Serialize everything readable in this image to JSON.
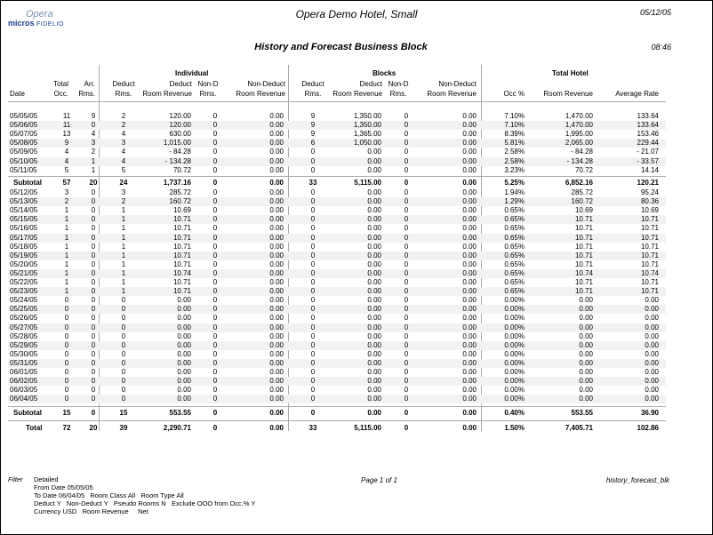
{
  "header": {
    "logo_top": "Opera",
    "logo_brand": "micros",
    "logo_sub": "FIDELIO",
    "hotel": "Opera Demo Hotel, Small",
    "date": "05/12/05",
    "title": "History and Forecast Business Block",
    "time": "08:46"
  },
  "groups": {
    "individual": "Individual",
    "blocks": "Blocks",
    "total_hotel": "Total Hotel"
  },
  "columns": [
    [
      "",
      "",
      "Date"
    ],
    [
      "",
      "Total",
      "Occ."
    ],
    [
      "",
      "Arr.",
      "Rms."
    ],
    [
      "",
      "Deduct",
      "Rms."
    ],
    [
      "",
      "Deduct",
      "Room Revenue"
    ],
    [
      "",
      "Non-D",
      "Rms."
    ],
    [
      "",
      "Non-Deduct",
      "Room Revenue"
    ],
    [
      "",
      "Deduct",
      "Rms."
    ],
    [
      "",
      "Deduct",
      "Room Revenue"
    ],
    [
      "",
      "Non-D",
      "Rms."
    ],
    [
      "",
      "Non-Deduct",
      "Room Revenue"
    ],
    [
      "",
      "",
      "Occ %"
    ],
    [
      "",
      "",
      "Room Revenue"
    ],
    [
      "",
      "",
      "Average Rate"
    ]
  ],
  "rows": [
    [
      "05/05/05",
      "11",
      "9",
      "2",
      "120.00",
      "0",
      "0.00",
      "9",
      "1,350.00",
      "0",
      "0.00",
      "7.10%",
      "1,470.00",
      "133.64"
    ],
    [
      "05/06/05",
      "11",
      "0",
      "2",
      "120.00",
      "0",
      "0.00",
      "9",
      "1,350.00",
      "0",
      "0.00",
      "7.10%",
      "1,470.00",
      "133.64"
    ],
    [
      "05/07/05",
      "13",
      "4",
      "4",
      "630.00",
      "0",
      "0.00",
      "9",
      "1,365.00",
      "0",
      "0.00",
      "8.39%",
      "1,995.00",
      "153.46"
    ],
    [
      "05/08/05",
      "9",
      "3",
      "3",
      "1,015.00",
      "0",
      "0.00",
      "6",
      "1,050.00",
      "0",
      "0.00",
      "5.81%",
      "2,065.00",
      "229.44"
    ],
    [
      "05/09/05",
      "4",
      "2",
      "4",
      "- 84.28",
      "0",
      "0.00",
      "0",
      "0.00",
      "0",
      "0.00",
      "2.58%",
      "- 84.28",
      "- 21.07"
    ],
    [
      "05/10/05",
      "4",
      "1",
      "4",
      "- 134.28",
      "0",
      "0.00",
      "0",
      "0.00",
      "0",
      "0.00",
      "2.58%",
      "- 134.28",
      "- 33.57"
    ],
    [
      "05/11/05",
      "5",
      "1",
      "5",
      "70.72",
      "0",
      "0.00",
      "0",
      "0.00",
      "0",
      "0.00",
      "3.23%",
      "70.72",
      "14.14"
    ],
    [
      "Subtotal",
      "57",
      "20",
      "24",
      "1,737.16",
      "0",
      "0.00",
      "33",
      "5,115.00",
      "0",
      "0.00",
      "5.25%",
      "6,852.16",
      "120.21"
    ],
    [
      "05/12/05",
      "3",
      "0",
      "3",
      "285.72",
      "0",
      "0.00",
      "0",
      "0.00",
      "0",
      "0.00",
      "1.94%",
      "285.72",
      "95.24"
    ],
    [
      "05/13/05",
      "2",
      "0",
      "2",
      "160.72",
      "0",
      "0.00",
      "0",
      "0.00",
      "0",
      "0.00",
      "1.29%",
      "160.72",
      "80.36"
    ],
    [
      "05/14/05",
      "1",
      "0",
      "1",
      "10.69",
      "0",
      "0.00",
      "0",
      "0.00",
      "0",
      "0.00",
      "0.65%",
      "10.69",
      "10.69"
    ],
    [
      "05/15/05",
      "1",
      "0",
      "1",
      "10.71",
      "0",
      "0.00",
      "0",
      "0.00",
      "0",
      "0.00",
      "0.65%",
      "10.71",
      "10.71"
    ],
    [
      "05/16/05",
      "1",
      "0",
      "1",
      "10.71",
      "0",
      "0.00",
      "0",
      "0.00",
      "0",
      "0.00",
      "0.65%",
      "10.71",
      "10.71"
    ],
    [
      "05/17/05",
      "1",
      "0",
      "1",
      "10.71",
      "0",
      "0.00",
      "0",
      "0.00",
      "0",
      "0.00",
      "0.65%",
      "10.71",
      "10.71"
    ],
    [
      "05/18/05",
      "1",
      "0",
      "1",
      "10.71",
      "0",
      "0.00",
      "0",
      "0.00",
      "0",
      "0.00",
      "0.65%",
      "10.71",
      "10.71"
    ],
    [
      "05/19/05",
      "1",
      "0",
      "1",
      "10.71",
      "0",
      "0.00",
      "0",
      "0.00",
      "0",
      "0.00",
      "0.65%",
      "10.71",
      "10.71"
    ],
    [
      "05/20/05",
      "1",
      "0",
      "1",
      "10.71",
      "0",
      "0.00",
      "0",
      "0.00",
      "0",
      "0.00",
      "0.65%",
      "10.71",
      "10.71"
    ],
    [
      "05/21/05",
      "1",
      "0",
      "1",
      "10.74",
      "0",
      "0.00",
      "0",
      "0.00",
      "0",
      "0.00",
      "0.65%",
      "10.74",
      "10.74"
    ],
    [
      "05/22/05",
      "1",
      "0",
      "1",
      "10.71",
      "0",
      "0.00",
      "0",
      "0.00",
      "0",
      "0.00",
      "0.65%",
      "10.71",
      "10.71"
    ],
    [
      "05/23/05",
      "1",
      "0",
      "1",
      "10.71",
      "0",
      "0.00",
      "0",
      "0.00",
      "0",
      "0.00",
      "0.65%",
      "10.71",
      "10.71"
    ],
    [
      "05/24/05",
      "0",
      "0",
      "0",
      "0.00",
      "0",
      "0.00",
      "0",
      "0.00",
      "0",
      "0.00",
      "0.00%",
      "0.00",
      "0.00"
    ],
    [
      "05/25/05",
      "0",
      "0",
      "0",
      "0.00",
      "0",
      "0.00",
      "0",
      "0.00",
      "0",
      "0.00",
      "0.00%",
      "0.00",
      "0.00"
    ],
    [
      "05/26/05",
      "0",
      "0",
      "0",
      "0.00",
      "0",
      "0.00",
      "0",
      "0.00",
      "0",
      "0.00",
      "0.00%",
      "0.00",
      "0.00"
    ],
    [
      "05/27/05",
      "0",
      "0",
      "0",
      "0.00",
      "0",
      "0.00",
      "0",
      "0.00",
      "0",
      "0.00",
      "0.00%",
      "0.00",
      "0.00"
    ],
    [
      "05/28/05",
      "0",
      "0",
      "0",
      "0.00",
      "0",
      "0.00",
      "0",
      "0.00",
      "0",
      "0.00",
      "0.00%",
      "0.00",
      "0.00"
    ],
    [
      "05/29/05",
      "0",
      "0",
      "0",
      "0.00",
      "0",
      "0.00",
      "0",
      "0.00",
      "0",
      "0.00",
      "0.00%",
      "0.00",
      "0.00"
    ],
    [
      "05/30/05",
      "0",
      "0",
      "0",
      "0.00",
      "0",
      "0.00",
      "0",
      "0.00",
      "0",
      "0.00",
      "0.00%",
      "0.00",
      "0.00"
    ],
    [
      "05/31/05",
      "0",
      "0",
      "0",
      "0.00",
      "0",
      "0.00",
      "0",
      "0.00",
      "0",
      "0.00",
      "0.00%",
      "0.00",
      "0.00"
    ],
    [
      "06/01/05",
      "0",
      "0",
      "0",
      "0.00",
      "0",
      "0.00",
      "0",
      "0.00",
      "0",
      "0.00",
      "0.00%",
      "0.00",
      "0.00"
    ],
    [
      "06/02/05",
      "0",
      "0",
      "0",
      "0.00",
      "0",
      "0.00",
      "0",
      "0.00",
      "0",
      "0.00",
      "0.00%",
      "0.00",
      "0.00"
    ],
    [
      "06/03/05",
      "0",
      "0",
      "0",
      "0.00",
      "0",
      "0.00",
      "0",
      "0.00",
      "0",
      "0.00",
      "0.00%",
      "0.00",
      "0.00"
    ],
    [
      "06/04/05",
      "0",
      "0",
      "0",
      "0.00",
      "0",
      "0.00",
      "0",
      "0.00",
      "0",
      "0.00",
      "0.00%",
      "0.00",
      "0.00"
    ],
    [
      "Subtotal",
      "15",
      "0",
      "15",
      "553.55",
      "0",
      "0.00",
      "0",
      "0.00",
      "0",
      "0.00",
      "0.40%",
      "553.55",
      "36.90"
    ],
    [
      "Total",
      "72",
      "20",
      "39",
      "2,290.71",
      "0",
      "0.00",
      "33",
      "5,115.00",
      "0",
      "0.00",
      "1.50%",
      "7,405.71",
      "102.86"
    ]
  ],
  "footer": {
    "filter_label": "Filter",
    "filter_lines": [
      "Detailed",
      "From Date 05/05/05",
      "To Date 06/04/05   Room Class All   Room Type All",
      "Deduct Y   Non-Deduct Y   Pseudo Rooms N   Exclude OOO from Occ.% Y",
      "Currency USD   Room Revenue     Net"
    ],
    "page": "Page 1 of 1",
    "report_name": "history_forecast_blk"
  }
}
